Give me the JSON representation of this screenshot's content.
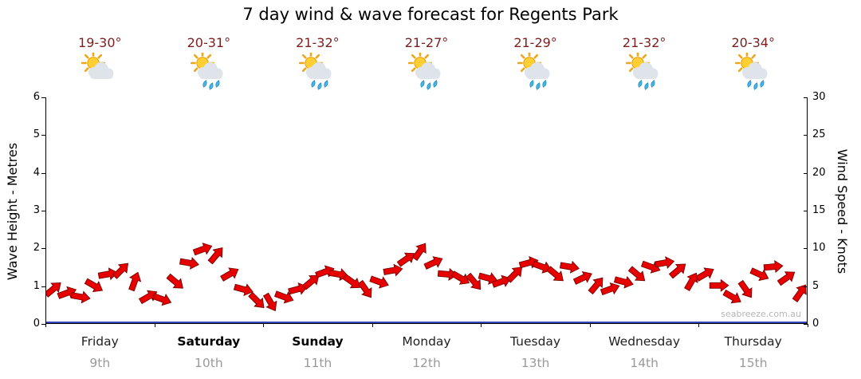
{
  "title": "7 day wind & wave forecast for Regents Park",
  "watermark": "seabreeze.com.au",
  "colors": {
    "wind_arrow": "#e60000",
    "wind_arrow_outline": "#7a0000",
    "wave_line": "#3344bb",
    "temp_text": "#7b1f1f",
    "date_text": "#9a9a9a"
  },
  "forecast_days": [
    {
      "day": "Friday",
      "date": "9th",
      "temp": "19-30°",
      "icon": "partly-cloudy",
      "bold": false
    },
    {
      "day": "Saturday",
      "date": "10th",
      "temp": "20-31°",
      "icon": "partly-cloudy-showers",
      "bold": true
    },
    {
      "day": "Sunday",
      "date": "11th",
      "temp": "21-32°",
      "icon": "partly-cloudy-showers",
      "bold": true
    },
    {
      "day": "Monday",
      "date": "12th",
      "temp": "21-27°",
      "icon": "partly-cloudy-showers",
      "bold": false
    },
    {
      "day": "Tuesday",
      "date": "13th",
      "temp": "21-29°",
      "icon": "partly-cloudy-showers",
      "bold": false
    },
    {
      "day": "Wednesday",
      "date": "14th",
      "temp": "21-32°",
      "icon": "partly-cloudy-showers",
      "bold": false
    },
    {
      "day": "Thursday",
      "date": "15th",
      "temp": "20-34°",
      "icon": "partly-cloudy-showers",
      "bold": false
    }
  ],
  "chart_data": {
    "type": "line",
    "title": "7 day wind & wave forecast for Regents Park",
    "x_categories": [
      "Friday 9th",
      "Saturday 10th",
      "Sunday 11th",
      "Monday 12th",
      "Tuesday 13th",
      "Wednesday 14th",
      "Thursday 15th"
    ],
    "points_per_day": 8,
    "left_axis": {
      "label": "Wave Height - Metres",
      "min": 0,
      "max": 6,
      "ticks": [
        0,
        1,
        2,
        3,
        4,
        5,
        6
      ]
    },
    "right_axis": {
      "label": "Wind Speed - Knots",
      "min": 0,
      "max": 30,
      "ticks": [
        0,
        5,
        10,
        15,
        20,
        25,
        30
      ]
    },
    "grid": "none",
    "legend": "none",
    "series": [
      {
        "name": "Wave Height",
        "unit": "m",
        "color": "#3344bb",
        "style": "flat-line",
        "values_per_day": [
          0,
          0,
          0,
          0,
          0,
          0,
          0
        ]
      },
      {
        "name": "Wind Speed",
        "unit": "knots",
        "color": "#e60000",
        "style": "arrows",
        "values": [
          4.5,
          4.0,
          3.5,
          5.0,
          6.5,
          7.0,
          5.5,
          3.5,
          3.2,
          5.5,
          8.0,
          9.8,
          9.0,
          6.5,
          4.5,
          3.0,
          2.8,
          3.5,
          4.5,
          5.5,
          6.8,
          6.5,
          5.5,
          4.5,
          5.5,
          7.0,
          8.5,
          9.5,
          8.0,
          6.5,
          6.0,
          5.5,
          6.0,
          5.5,
          6.5,
          8.0,
          7.5,
          6.5,
          7.5,
          6.0,
          5.0,
          4.5,
          5.5,
          6.5,
          7.5,
          8.0,
          7.0,
          5.5,
          6.5,
          5.0,
          3.5,
          4.5,
          6.5,
          7.5,
          6.0,
          4.0
        ],
        "directions_deg": [
          40,
          20,
          -10,
          -30,
          10,
          45,
          70,
          30,
          -20,
          -40,
          -10,
          20,
          50,
          30,
          -15,
          -45,
          -60,
          -20,
          15,
          40,
          20,
          -10,
          -35,
          -55,
          -20,
          10,
          35,
          55,
          25,
          -5,
          -30,
          -50,
          -15,
          20,
          45,
          15,
          -20,
          -40,
          -10,
          25,
          50,
          20,
          -15,
          -40,
          -20,
          10,
          40,
          60,
          30,
          0,
          -30,
          -55,
          -25,
          5,
          35,
          55
        ]
      }
    ]
  }
}
